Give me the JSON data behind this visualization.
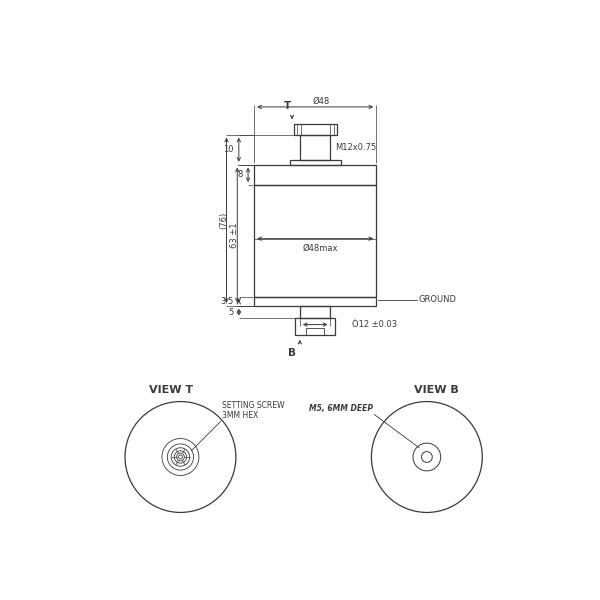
{
  "bg_color": "#ffffff",
  "line_color": "#3a3a3a",
  "dim_color": "#3a3a3a",
  "fig_width": 6.0,
  "fig_height": 6.0,
  "dpi": 100,
  "dimensions": {
    "phi48_label": "Ø48",
    "M12_label": "M12x0.75",
    "phi48max_label": "Ø48max",
    "phi12_label": "Ò12 ±0.03",
    "dim_8": "8",
    "dim_10": "10",
    "dim_63": "63 ±1",
    "dim_76": "(76)",
    "dim_35": "3.5",
    "dim_5": "5",
    "ground_label": "GROUND",
    "T_label": "T",
    "B_label": "B"
  },
  "view_t_label": "VIEW T",
  "view_b_label": "VIEW B",
  "setting_screw_label": "SETTING SCREW\n3MM HEX",
  "m5_label": "M5, 6MM DEEP"
}
